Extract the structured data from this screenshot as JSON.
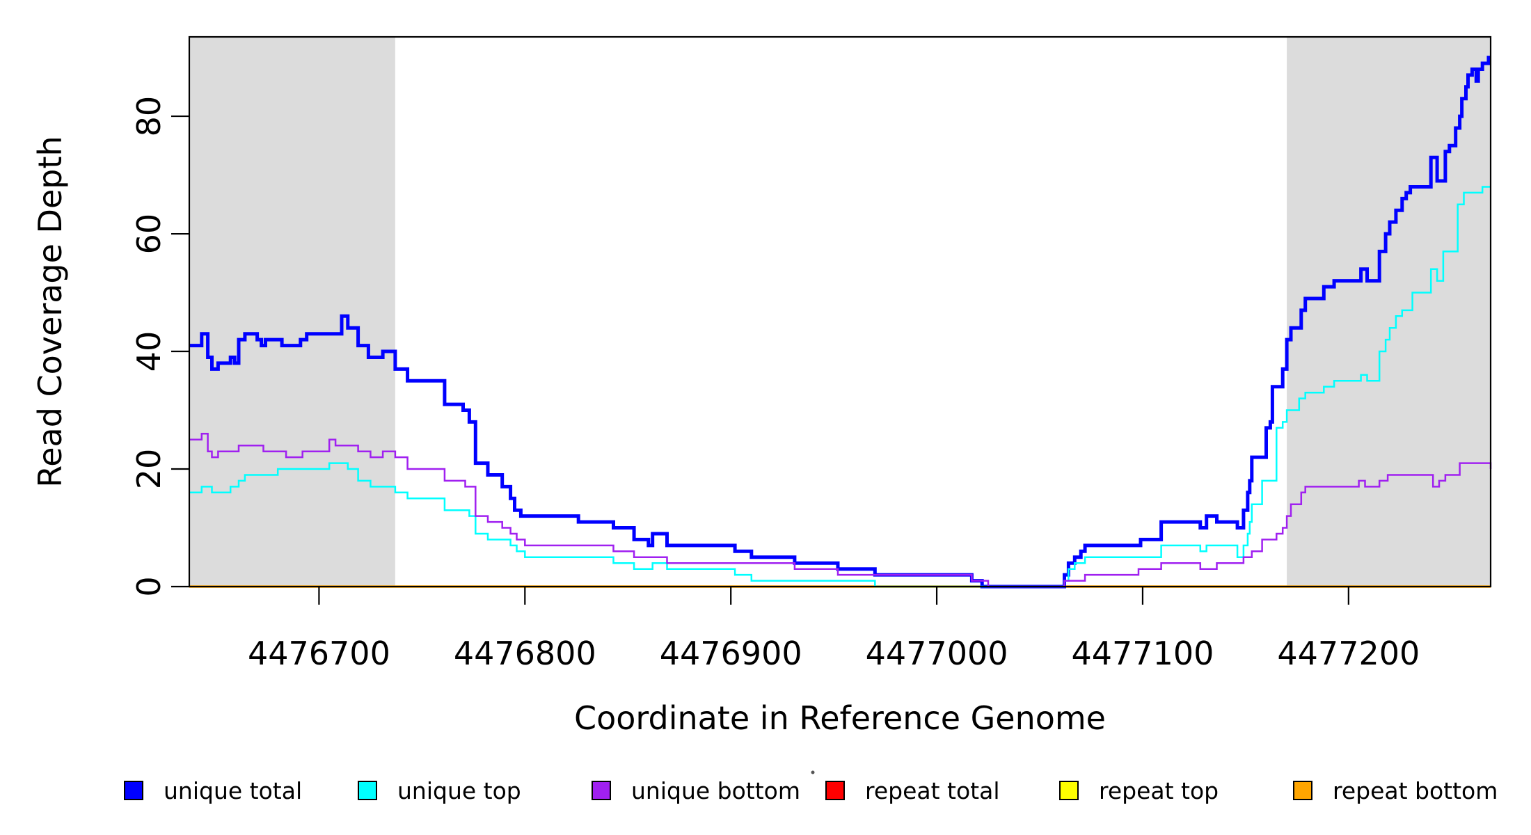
{
  "figure": {
    "background_color": "#FFFFFF",
    "shade_color": "#DCDCDC",
    "axis_color": "#000000"
  },
  "chart_data": {
    "type": "line",
    "line_style": "step",
    "title": "",
    "xlabel": "Coordinate in Reference Genome",
    "ylabel": "Read Coverage Depth",
    "xlim": [
      4476637,
      4477269
    ],
    "ylim": [
      0,
      93.5
    ],
    "x_ticks": [
      4476700,
      4476800,
      4476900,
      4477000,
      4477100,
      4477200
    ],
    "y_ticks": [
      0,
      20,
      40,
      60,
      80
    ],
    "grid": false,
    "legend_position": "bottom",
    "shaded_regions": [
      {
        "x0": 4476637,
        "x1": 4476737
      },
      {
        "x0": 4477170,
        "x1": 4477269
      }
    ],
    "series": [
      {
        "name": "repeat total",
        "color": "#FF0000",
        "width": 2,
        "points": [
          [
            4476637,
            0
          ],
          [
            4477269,
            0
          ]
        ]
      },
      {
        "name": "repeat top",
        "color": "#FFFF00",
        "width": 2,
        "points": [
          [
            4476637,
            0
          ],
          [
            4477269,
            0
          ]
        ]
      },
      {
        "name": "repeat bottom",
        "color": "#FFA500",
        "width": 3.5,
        "points": [
          [
            4476637,
            0
          ],
          [
            4477269,
            0
          ]
        ]
      },
      {
        "name": "unique total",
        "color": "#0000FF",
        "width": 5,
        "points": [
          [
            4476637,
            41
          ],
          [
            4476643,
            43
          ],
          [
            4476646,
            39
          ],
          [
            4476648,
            37
          ],
          [
            4476651,
            38
          ],
          [
            4476657,
            39
          ],
          [
            4476659,
            38
          ],
          [
            4476661,
            42
          ],
          [
            4476664,
            43
          ],
          [
            4476670,
            42
          ],
          [
            4476672,
            41
          ],
          [
            4476674,
            42
          ],
          [
            4476682,
            41
          ],
          [
            4476691,
            42
          ],
          [
            4476694,
            43
          ],
          [
            4476711,
            46
          ],
          [
            4476714,
            44
          ],
          [
            4476719,
            41
          ],
          [
            4476724,
            39
          ],
          [
            4476731,
            40
          ],
          [
            4476737,
            37
          ],
          [
            4476743,
            35
          ],
          [
            4476761,
            31
          ],
          [
            4476770,
            30
          ],
          [
            4476773,
            28
          ],
          [
            4476776,
            21
          ],
          [
            4476782,
            19
          ],
          [
            4476789,
            17
          ],
          [
            4476793,
            15
          ],
          [
            4476795,
            13
          ],
          [
            4476798,
            12
          ],
          [
            4476826,
            11
          ],
          [
            4476843,
            10
          ],
          [
            4476853,
            8
          ],
          [
            4476860,
            7
          ],
          [
            4476862,
            9
          ],
          [
            4476869,
            7
          ],
          [
            4476902,
            6
          ],
          [
            4476910,
            5
          ],
          [
            4476931,
            4
          ],
          [
            4476952,
            3
          ],
          [
            4476970,
            2
          ],
          [
            4477017,
            1
          ],
          [
            4477022,
            0
          ],
          [
            4477062,
            2
          ],
          [
            4477064,
            4
          ],
          [
            4477067,
            5
          ],
          [
            4477070,
            6
          ],
          [
            4477072,
            7
          ],
          [
            4477099,
            8
          ],
          [
            4477109,
            11
          ],
          [
            4477128,
            10
          ],
          [
            4477131,
            12
          ],
          [
            4477136,
            11
          ],
          [
            4477146,
            10
          ],
          [
            4477149,
            13
          ],
          [
            4477151,
            16
          ],
          [
            4477152,
            18
          ],
          [
            4477153,
            22
          ],
          [
            4477160,
            27
          ],
          [
            4477162,
            28
          ],
          [
            4477163,
            34
          ],
          [
            4477168,
            37
          ],
          [
            4477170,
            42
          ],
          [
            4477172,
            44
          ],
          [
            4477177,
            47
          ],
          [
            4477179,
            49
          ],
          [
            4477188,
            51
          ],
          [
            4477193,
            52
          ],
          [
            4477206,
            54
          ],
          [
            4477209,
            52
          ],
          [
            4477215,
            57
          ],
          [
            4477218,
            60
          ],
          [
            4477220,
            62
          ],
          [
            4477223,
            64
          ],
          [
            4477226,
            66
          ],
          [
            4477228,
            67
          ],
          [
            4477230,
            68
          ],
          [
            4477240,
            73
          ],
          [
            4477243,
            69
          ],
          [
            4477247,
            74
          ],
          [
            4477249,
            75
          ],
          [
            4477252,
            78
          ],
          [
            4477254,
            80
          ],
          [
            4477255,
            83
          ],
          [
            4477257,
            85
          ],
          [
            4477258,
            87
          ],
          [
            4477260,
            88
          ],
          [
            4477262,
            86
          ],
          [
            4477263,
            88
          ],
          [
            4477265,
            89
          ],
          [
            4477268,
            90
          ],
          [
            4477269,
            90
          ]
        ]
      },
      {
        "name": "unique top",
        "color": "#00FFFF",
        "width": 2.5,
        "points": [
          [
            4476637,
            16
          ],
          [
            4476643,
            17
          ],
          [
            4476648,
            16
          ],
          [
            4476657,
            17
          ],
          [
            4476661,
            18
          ],
          [
            4476664,
            19
          ],
          [
            4476680,
            20
          ],
          [
            4476705,
            21
          ],
          [
            4476714,
            20
          ],
          [
            4476719,
            18
          ],
          [
            4476725,
            17
          ],
          [
            4476737,
            16
          ],
          [
            4476743,
            15
          ],
          [
            4476761,
            13
          ],
          [
            4476773,
            12
          ],
          [
            4476776,
            9
          ],
          [
            4476782,
            8
          ],
          [
            4476793,
            7
          ],
          [
            4476796,
            6
          ],
          [
            4476800,
            5
          ],
          [
            4476843,
            4
          ],
          [
            4476853,
            3
          ],
          [
            4476862,
            4
          ],
          [
            4476869,
            3
          ],
          [
            4476902,
            2
          ],
          [
            4476910,
            1
          ],
          [
            4476970,
            0
          ],
          [
            4477062,
            1
          ],
          [
            4477064,
            3
          ],
          [
            4477067,
            4
          ],
          [
            4477072,
            5
          ],
          [
            4477109,
            7
          ],
          [
            4477128,
            6
          ],
          [
            4477131,
            7
          ],
          [
            4477146,
            5
          ],
          [
            4477149,
            7
          ],
          [
            4477151,
            9
          ],
          [
            4477152,
            11
          ],
          [
            4477153,
            14
          ],
          [
            4477158,
            18
          ],
          [
            4477165,
            27
          ],
          [
            4477168,
            28
          ],
          [
            4477170,
            30
          ],
          [
            4477176,
            32
          ],
          [
            4477179,
            33
          ],
          [
            4477188,
            34
          ],
          [
            4477193,
            35
          ],
          [
            4477206,
            36
          ],
          [
            4477209,
            35
          ],
          [
            4477215,
            40
          ],
          [
            4477218,
            42
          ],
          [
            4477220,
            44
          ],
          [
            4477223,
            46
          ],
          [
            4477226,
            47
          ],
          [
            4477231,
            50
          ],
          [
            4477240,
            54
          ],
          [
            4477243,
            52
          ],
          [
            4477246,
            57
          ],
          [
            4477253,
            65
          ],
          [
            4477256,
            67
          ],
          [
            4477263,
            67
          ],
          [
            4477265,
            68
          ],
          [
            4477269,
            68
          ]
        ]
      },
      {
        "name": "unique bottom",
        "color": "#A020F0",
        "width": 2.5,
        "points": [
          [
            4476637,
            25
          ],
          [
            4476643,
            26
          ],
          [
            4476646,
            23
          ],
          [
            4476648,
            22
          ],
          [
            4476651,
            23
          ],
          [
            4476661,
            24
          ],
          [
            4476673,
            23
          ],
          [
            4476684,
            22
          ],
          [
            4476692,
            23
          ],
          [
            4476705,
            25
          ],
          [
            4476708,
            24
          ],
          [
            4476719,
            23
          ],
          [
            4476725,
            22
          ],
          [
            4476731,
            23
          ],
          [
            4476737,
            22
          ],
          [
            4476743,
            20
          ],
          [
            4476761,
            18
          ],
          [
            4476771,
            17
          ],
          [
            4476776,
            12
          ],
          [
            4476782,
            11
          ],
          [
            4476789,
            10
          ],
          [
            4476793,
            9
          ],
          [
            4476796,
            8
          ],
          [
            4476800,
            7
          ],
          [
            4476843,
            6
          ],
          [
            4476853,
            5
          ],
          [
            4476869,
            4
          ],
          [
            4476931,
            3
          ],
          [
            4476952,
            2
          ],
          [
            4477017,
            1
          ],
          [
            4477025,
            0
          ],
          [
            4477062,
            1
          ],
          [
            4477072,
            2
          ],
          [
            4477098,
            3
          ],
          [
            4477109,
            4
          ],
          [
            4477128,
            3
          ],
          [
            4477136,
            4
          ],
          [
            4477149,
            5
          ],
          [
            4477153,
            6
          ],
          [
            4477158,
            8
          ],
          [
            4477165,
            9
          ],
          [
            4477168,
            10
          ],
          [
            4477170,
            12
          ],
          [
            4477172,
            14
          ],
          [
            4477177,
            16
          ],
          [
            4477179,
            17
          ],
          [
            4477205,
            18
          ],
          [
            4477208,
            17
          ],
          [
            4477215,
            18
          ],
          [
            4477219,
            19
          ],
          [
            4477241,
            17
          ],
          [
            4477244,
            18
          ],
          [
            4477247,
            19
          ],
          [
            4477254,
            21
          ],
          [
            4477267,
            21
          ],
          [
            4477269,
            20
          ]
        ]
      }
    ],
    "legend_entries": [
      {
        "label": "unique total",
        "color": "#0000FF"
      },
      {
        "label": "unique top",
        "color": "#00FFFF"
      },
      {
        "label": "unique bottom",
        "color": "#A020F0"
      },
      {
        "label": "repeat total",
        "color": "#FF0000"
      },
      {
        "label": "repeat top",
        "color": "#FFFF00"
      },
      {
        "label": "repeat bottom",
        "color": "#FFA500"
      }
    ]
  }
}
